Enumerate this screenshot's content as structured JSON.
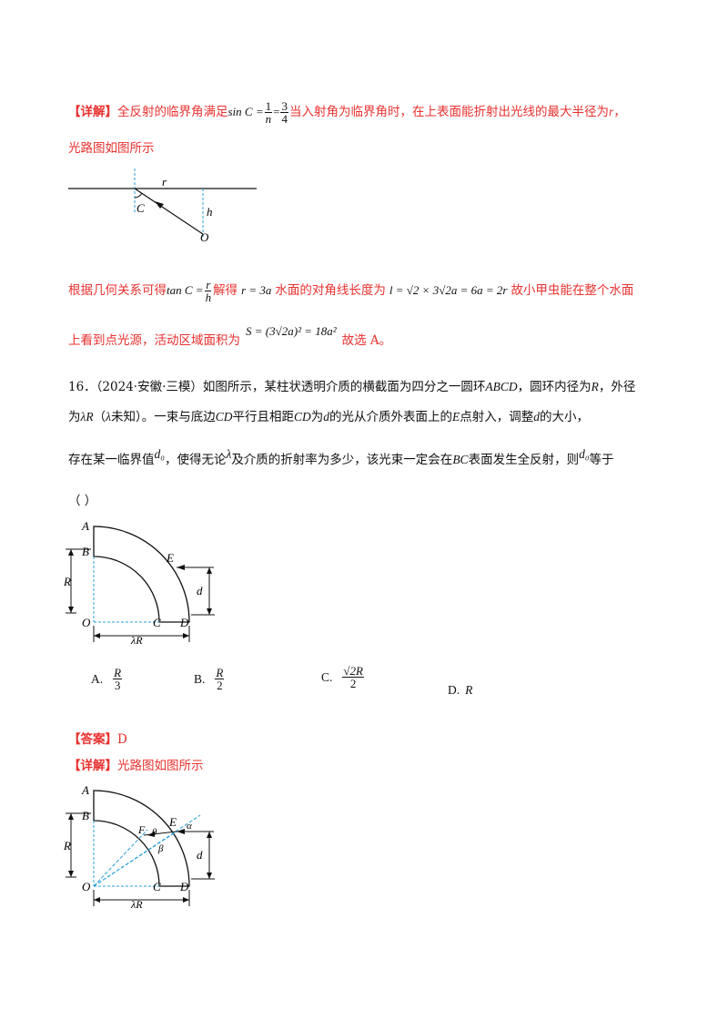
{
  "p1": {
    "tag": "【详解】",
    "text_a": "全反射的临界角满足",
    "eq1_lhs": "sin C =",
    "eq1_f1_num": "1",
    "eq1_f1_den": "n",
    "eq1_eq": "=",
    "eq1_f2_num": "3",
    "eq1_f2_den": "4",
    "text_b": "当入射角为临界角时，在上表面能折射出光线的最大半径为",
    "var_r": "r",
    "comma": "，",
    "line2": "光路图如图所示"
  },
  "fig1": {
    "label_r": "r",
    "label_C": "C",
    "label_h": "h",
    "label_O": "O"
  },
  "p2": {
    "text_a": "根据几何关系可得",
    "tan_lhs": "tan C =",
    "tan_num": "r",
    "tan_den": "h",
    "text_b": "解得",
    "eq_r": "r = 3a",
    "text_c": "水面的对角线长度为",
    "eq_l": "l = √2 × 3√2a = 6a = 2r",
    "text_d": "故小甲虫能在整个水面",
    "text_e": "上看到点光源，活动区域面积为",
    "eq_S": "S = (3√2a)² = 18a²",
    "text_f": "故选 A。"
  },
  "q16": {
    "line1": "16．（2024·安徽·三模）如图所示，某柱状透明介质的横截面为四分之一圆环",
    "abcd": "ABCD",
    "line1b": "，圆环内径为",
    "R1": "R",
    "line1c": "，外径",
    "line2a": "为",
    "lambdaR": "λR",
    "line2b": "（",
    "lambda": "λ",
    "line2c": "未知）。一束与底边",
    "CD1": "CD",
    "line2d": "平行且相距",
    "CD2": "CD",
    "line2e": "为",
    "d1": "d",
    "line2f": "的光从介质外表面上的",
    "E1": "E",
    "line2g": "点射入，调整",
    "d2": "d",
    "line2h": "的大小，",
    "line3a": "存在某一临界值",
    "d0a": "d₀",
    "line3b": "，使得无论",
    "lambda2": "λ",
    "line3c": "及介质的折射率为多少，该光束一定会在",
    "BC": "BC",
    "line3d": "表面发生全反射，则",
    "d0b": "d₀",
    "line3e": "等于",
    "paren": "（    ）"
  },
  "fig2": {
    "A": "A",
    "B": "B",
    "E": "E",
    "R": "R",
    "d": "d",
    "O": "O",
    "C": "C",
    "D": "D",
    "lambdaR": "λR"
  },
  "options": [
    {
      "key": "A.",
      "num": "R",
      "den": "3"
    },
    {
      "key": "B.",
      "num": "R",
      "den": "2"
    },
    {
      "key": "C.",
      "num": "√2R",
      "den": "2"
    },
    {
      "key": "D.",
      "val": "R"
    }
  ],
  "answer": {
    "tag": "【答案】",
    "value": "D"
  },
  "detail2": {
    "tag": "【详解】",
    "text": "光路图如图所示"
  },
  "fig3": {
    "A": "A",
    "B": "B",
    "E": "E",
    "F": "F",
    "theta": "θ",
    "alpha": "α",
    "beta": "β",
    "R": "R",
    "d": "d",
    "O": "O",
    "C": "C",
    "D": "D",
    "lambdaR": "λR"
  }
}
